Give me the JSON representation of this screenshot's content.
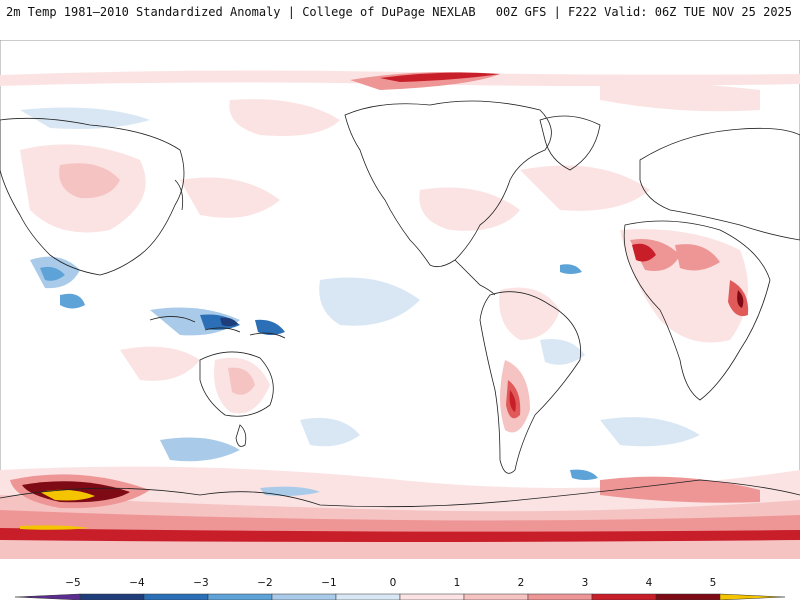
{
  "header": {
    "title": "2m Temp 1981–2010 Standardized Anomaly | College of DuPage NEXLAB",
    "run": "00Z GFS | F222 Valid: 06Z TUE NOV 25 2025"
  },
  "colors": {
    "ocean_land": "#ffffff",
    "coast": "#222222",
    "neg": [
      "#5b2d8f",
      "#1f3d7a",
      "#2b6fb6",
      "#5ea3d8",
      "#a9cbe9",
      "#d9e7f5"
    ],
    "pos": [
      "#fbe3e3",
      "#f6c3c3",
      "#ee9696",
      "#e05a5a",
      "#c81e2a",
      "#7d0a14",
      "#f5c400"
    ]
  },
  "colorbar": {
    "ticks": [
      "−5",
      "−4",
      "−3",
      "−2",
      "−1",
      "0",
      "1",
      "2",
      "3",
      "4",
      "5"
    ],
    "values": [
      -5,
      -4,
      -3,
      -2,
      -1,
      0,
      1,
      2,
      3,
      4,
      5
    ]
  }
}
